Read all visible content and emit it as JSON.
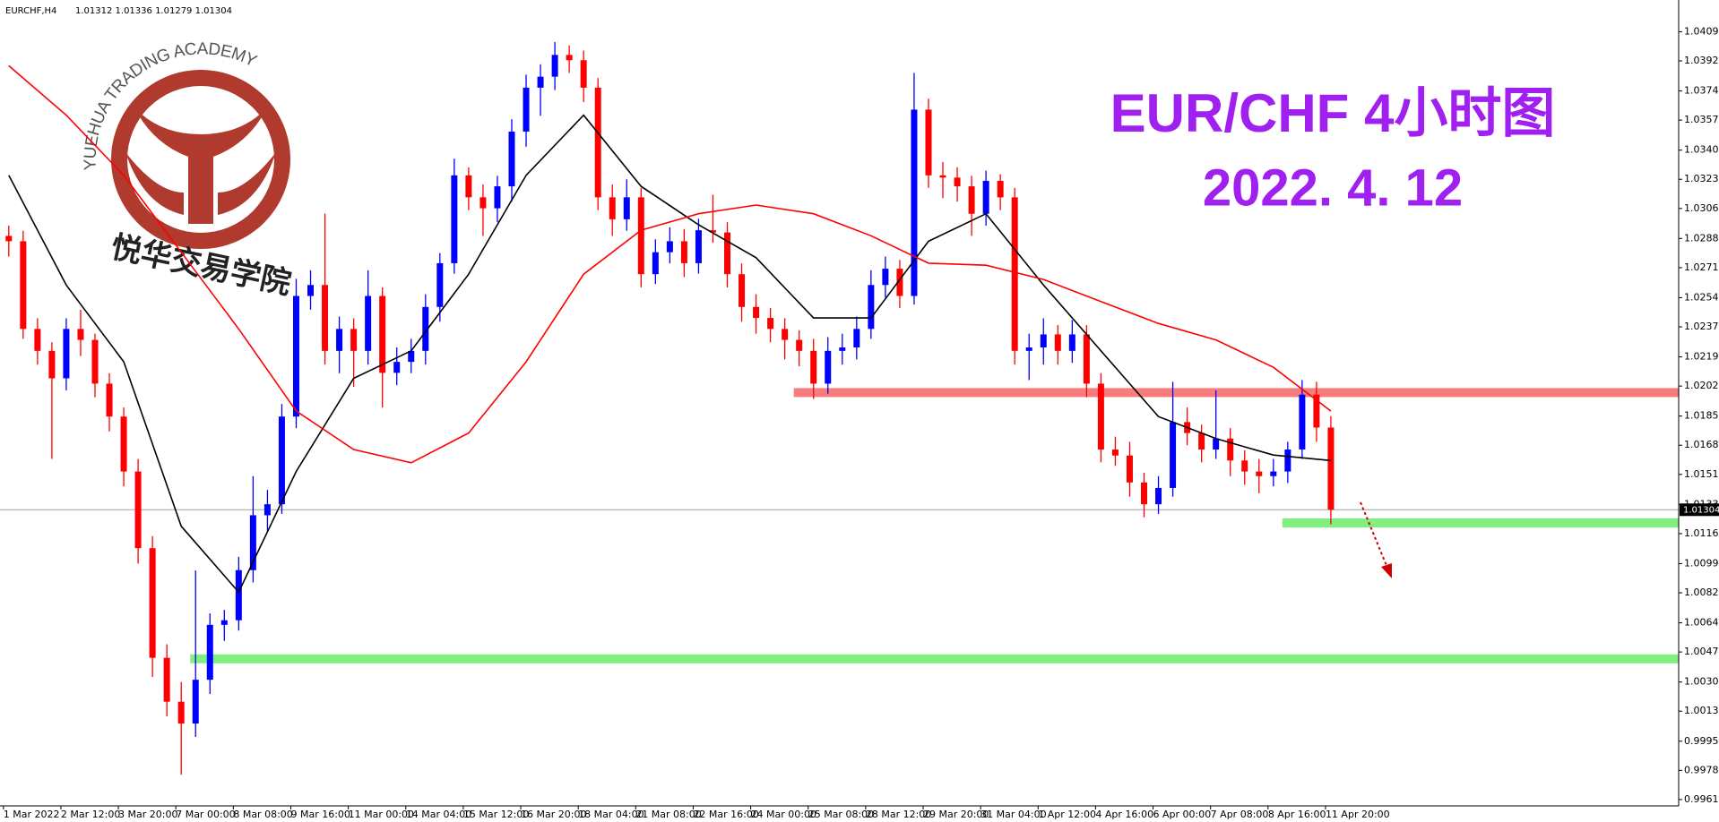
{
  "chart_data": {
    "type": "candlestick",
    "symbol": "EURCHF,H4",
    "ohlc_header": "1.01312 1.01336 1.01279 1.01304",
    "title": "EUR/CHF 4小时图",
    "subtitle": "2022. 4. 12",
    "watermark": {
      "name_en": "YUEHUA TRADING ACADEMY",
      "name_cn": "悦华交易学院"
    },
    "categories": [
      "1 Mar 2022",
      null,
      null,
      null,
      "2 Mar 12:00",
      null,
      null,
      null,
      "3 Mar 20:00",
      null,
      null,
      null,
      "7 Mar 00:00",
      null,
      null,
      null,
      "8 Mar 08:00",
      null,
      null,
      null,
      "9 Mar 16:00",
      null,
      null,
      null,
      "11 Mar 00:00",
      null,
      null,
      null,
      "14 Mar 04:00",
      null,
      null,
      null,
      "15 Mar 12:00",
      null,
      null,
      null,
      "16 Mar 20:00",
      null,
      null,
      null,
      "18 Mar 04:00",
      null,
      null,
      null,
      "21 Mar 08:00",
      null,
      null,
      null,
      "22 Mar 16:00",
      null,
      null,
      null,
      "24 Mar 00:00",
      null,
      null,
      null,
      "25 Mar 08:00",
      null,
      null,
      null,
      "28 Mar 12:00",
      null,
      null,
      null,
      "29 Mar 20:00",
      null,
      null,
      null,
      "31 Mar 04:00",
      null,
      null,
      null,
      "1 Apr 12:00",
      null,
      null,
      null,
      "4 Apr 16:00",
      null,
      null,
      null,
      "6 Apr 00:00",
      null,
      null,
      null,
      "7 Apr 08:00",
      null,
      null,
      null,
      "8 Apr 16:00",
      null,
      null,
      null,
      "11 Apr 20:00"
    ],
    "candles": [
      [
        1.029,
        1.0296,
        1.0278,
        1.02869
      ],
      [
        1.02869,
        1.0293,
        1.023,
        1.02358
      ],
      [
        1.02358,
        1.0242,
        1.0215,
        1.0223
      ],
      [
        1.0223,
        1.0228,
        1.016,
        1.0207
      ],
      [
        1.0207,
        1.0242,
        1.02,
        1.02358
      ],
      [
        1.02358,
        1.0247,
        1.022,
        1.02294
      ],
      [
        1.02294,
        1.0233,
        1.0196,
        1.02039
      ],
      [
        1.02039,
        1.021,
        1.0176,
        1.01847
      ],
      [
        1.01847,
        1.019,
        1.0144,
        1.01527
      ],
      [
        1.01527,
        1.016,
        1.0099,
        1.0108
      ],
      [
        1.0108,
        1.0115,
        1.0033,
        1.00441
      ],
      [
        1.00441,
        1.0052,
        1.001,
        1.00185
      ],
      [
        1.00185,
        1.003,
        0.9976,
        1.00058
      ],
      [
        1.00058,
        1.0095,
        0.9998,
        1.00313
      ],
      [
        1.00313,
        1.007,
        1.0023,
        1.00633
      ],
      [
        1.00633,
        1.0072,
        1.0054,
        1.0066
      ],
      [
        1.0066,
        1.0103,
        1.006,
        1.00952
      ],
      [
        1.00952,
        1.015,
        1.0088,
        1.01272
      ],
      [
        1.01272,
        1.0142,
        1.0118,
        1.01336
      ],
      [
        1.01336,
        1.0192,
        1.0128,
        1.01847
      ],
      [
        1.01847,
        1.0265,
        1.0178,
        1.0255
      ],
      [
        1.0255,
        1.027,
        1.0247,
        1.02614
      ],
      [
        1.02614,
        1.0303,
        1.0215,
        1.0223
      ],
      [
        1.0223,
        1.0243,
        1.021,
        1.02358
      ],
      [
        1.02358,
        1.0242,
        1.0202,
        1.0223
      ],
      [
        1.0223,
        1.027,
        1.0215,
        1.0255
      ],
      [
        1.0255,
        1.026,
        1.019,
        1.02102
      ],
      [
        1.02102,
        1.0225,
        1.0203,
        1.02166
      ],
      [
        1.02166,
        1.023,
        1.021,
        1.0223
      ],
      [
        1.0223,
        1.0256,
        1.0215,
        1.02486
      ],
      [
        1.02486,
        1.028,
        1.024,
        1.02741
      ],
      [
        1.02741,
        1.0335,
        1.0268,
        1.03253
      ],
      [
        1.03253,
        1.033,
        1.0305,
        1.03125
      ],
      [
        1.03125,
        1.032,
        1.029,
        1.03061
      ],
      [
        1.03061,
        1.0325,
        1.0298,
        1.03189
      ],
      [
        1.03189,
        1.0358,
        1.031,
        1.03508
      ],
      [
        1.03508,
        1.0384,
        1.0342,
        1.03764
      ],
      [
        1.03764,
        1.039,
        1.036,
        1.03828
      ],
      [
        1.03828,
        1.0403,
        1.0375,
        1.03955
      ],
      [
        1.03955,
        1.0401,
        1.0385,
        1.03924
      ],
      [
        1.03924,
        1.0398,
        1.0368,
        1.03764
      ],
      [
        1.03764,
        1.0382,
        1.0305,
        1.03125
      ],
      [
        1.03125,
        1.032,
        1.029,
        1.02997
      ],
      [
        1.02997,
        1.0323,
        1.0293,
        1.03125
      ],
      [
        1.03125,
        1.0318,
        1.026,
        1.02677
      ],
      [
        1.02677,
        1.0288,
        1.0262,
        1.02805
      ],
      [
        1.02805,
        1.0295,
        1.0274,
        1.02869
      ],
      [
        1.02869,
        1.0294,
        1.0266,
        1.02741
      ],
      [
        1.02741,
        1.03,
        1.0268,
        1.02933
      ],
      [
        1.02933,
        1.0314,
        1.0286,
        1.0292
      ],
      [
        1.0292,
        1.0298,
        1.026,
        1.02677
      ],
      [
        1.02677,
        1.0274,
        1.024,
        1.02486
      ],
      [
        1.02486,
        1.0256,
        1.0233,
        1.02422
      ],
      [
        1.02422,
        1.0248,
        1.0228,
        1.02358
      ],
      [
        1.02358,
        1.0242,
        1.0218,
        1.02294
      ],
      [
        1.02294,
        1.0235,
        1.0214,
        1.0223
      ],
      [
        1.0223,
        1.023,
        1.0195,
        1.02039
      ],
      [
        1.02039,
        1.0231,
        1.0198,
        1.0223
      ],
      [
        1.0223,
        1.0233,
        1.0215,
        1.0225
      ],
      [
        1.0225,
        1.0243,
        1.0218,
        1.02358
      ],
      [
        1.02358,
        1.027,
        1.023,
        1.02614
      ],
      [
        1.02614,
        1.0278,
        1.0254,
        1.02709
      ],
      [
        1.02709,
        1.0276,
        1.0248,
        1.0255
      ],
      [
        1.0255,
        1.0385,
        1.025,
        1.03636
      ],
      [
        1.03636,
        1.037,
        1.0318,
        1.03253
      ],
      [
        1.03253,
        1.0333,
        1.0312,
        1.0324
      ],
      [
        1.0324,
        1.033,
        1.031,
        1.03189
      ],
      [
        1.03189,
        1.0325,
        1.029,
        1.03029
      ],
      [
        1.03029,
        1.0328,
        1.0296,
        1.03221
      ],
      [
        1.03221,
        1.0326,
        1.0305,
        1.03125
      ],
      [
        1.03125,
        1.0318,
        1.0215,
        1.0223
      ],
      [
        1.0223,
        1.0233,
        1.0206,
        1.0225
      ],
      [
        1.0225,
        1.0242,
        1.0215,
        1.02326
      ],
      [
        1.02326,
        1.0238,
        1.0215,
        1.0223
      ],
      [
        1.0223,
        1.0241,
        1.0216,
        1.02326
      ],
      [
        1.02326,
        1.0238,
        1.0196,
        1.02039
      ],
      [
        1.02039,
        1.021,
        1.0158,
        1.01655
      ],
      [
        1.01655,
        1.0173,
        1.0156,
        1.0162
      ],
      [
        1.0162,
        1.017,
        1.0138,
        1.01463
      ],
      [
        1.01463,
        1.0152,
        1.0126,
        1.01336
      ],
      [
        1.01336,
        1.015,
        1.0128,
        1.01431
      ],
      [
        1.01431,
        1.0205,
        1.0138,
        1.01815
      ],
      [
        1.01815,
        1.019,
        1.0168,
        1.01751
      ],
      [
        1.01751,
        1.018,
        1.0158,
        1.01655
      ],
      [
        1.01655,
        1.02,
        1.016,
        1.01719
      ],
      [
        1.01719,
        1.0178,
        1.015,
        1.01591
      ],
      [
        1.01591,
        1.0165,
        1.0145,
        1.01527
      ],
      [
        1.01527,
        1.016,
        1.014,
        1.015
      ],
      [
        1.015,
        1.016,
        1.0144,
        1.01527
      ],
      [
        1.01527,
        1.017,
        1.0146,
        1.01655
      ],
      [
        1.01655,
        1.0206,
        1.016,
        1.01975
      ],
      [
        1.01975,
        1.0205,
        1.017,
        1.01783
      ],
      [
        1.01783,
        1.0185,
        1.0122,
        1.01304
      ]
    ],
    "bull_color": "#0000ff",
    "bear_color": "#ff0000",
    "ma_lines": [
      {
        "color": "#000000",
        "x": [
          0,
          4,
          8,
          12,
          16,
          20,
          24,
          28,
          32,
          36,
          40,
          44,
          48,
          52,
          56,
          60,
          64,
          68,
          72,
          76,
          80,
          84,
          88,
          92
        ],
        "values": [
          1.03253,
          1.02614,
          1.02166,
          1.01208,
          1.00824,
          1.01527,
          1.0207,
          1.0223,
          1.02677,
          1.03253,
          1.03604,
          1.03189,
          1.02965,
          1.02773,
          1.02422,
          1.02422,
          1.02869,
          1.03029,
          1.02614,
          1.0223,
          1.01847,
          1.01719,
          1.01623,
          1.01591
        ]
      },
      {
        "color": "#ff0000",
        "x": [
          0,
          4,
          8,
          12,
          16,
          20,
          24,
          28,
          32,
          36,
          40,
          44,
          48,
          52,
          56,
          60,
          64,
          68,
          72,
          76,
          80,
          84,
          88,
          92
        ],
        "values": [
          1.03892,
          1.03604,
          1.03253,
          1.02805,
          1.02358,
          1.01879,
          1.01655,
          1.01578,
          1.01751,
          1.02166,
          1.02677,
          1.02933,
          1.03029,
          1.0308,
          1.03029,
          1.02901,
          1.02741,
          1.02729,
          1.02646,
          1.02518,
          1.0239,
          1.02294,
          1.02134,
          1.01879
        ]
      }
    ],
    "levels": [
      {
        "value": 1.01987,
        "start": 55,
        "color": "#f87c7c"
      },
      {
        "value": 1.01227,
        "start": 89,
        "color": "#80f080"
      },
      {
        "value": 1.00435,
        "start": 13,
        "color": "#80f080"
      }
    ],
    "current_price": 1.01304,
    "ylim": [
      0.99578,
      1.04275
    ],
    "yticks": [
      {
        "value": 1.0409,
        "label": "1.04090"
      },
      {
        "value": 1.0392,
        "label": "1.03920"
      },
      1.03745,
      1.03575,
      {
        "value": 1.034,
        "label": "1.03400"
      },
      {
        "value": 1.0323,
        "label": "1.03230"
      },
      {
        "value": 1.0306,
        "label": "1.03060"
      },
      1.02885,
      1.02715,
      {
        "value": 1.0254,
        "label": "1.02540"
      },
      {
        "value": 1.0237,
        "label": "1.02370"
      },
      1.02195,
      1.02025,
      {
        "value": 1.0185,
        "label": "1.01850"
      },
      {
        "value": 1.0168,
        "label": "1.01680"
      },
      {
        "value": 1.0151,
        "label": "1.01510"
      },
      1.01335,
      1.01165,
      {
        "value": 1.0099,
        "label": "1.00990"
      },
      {
        "value": 1.0082,
        "label": "1.00820"
      },
      1.00645,
      1.00475,
      {
        "value": 1.003,
        "label": "1.00300"
      },
      {
        "value": 1.0013,
        "label": "1.00130"
      },
      0.99955,
      0.99785,
      0.99615
    ]
  }
}
